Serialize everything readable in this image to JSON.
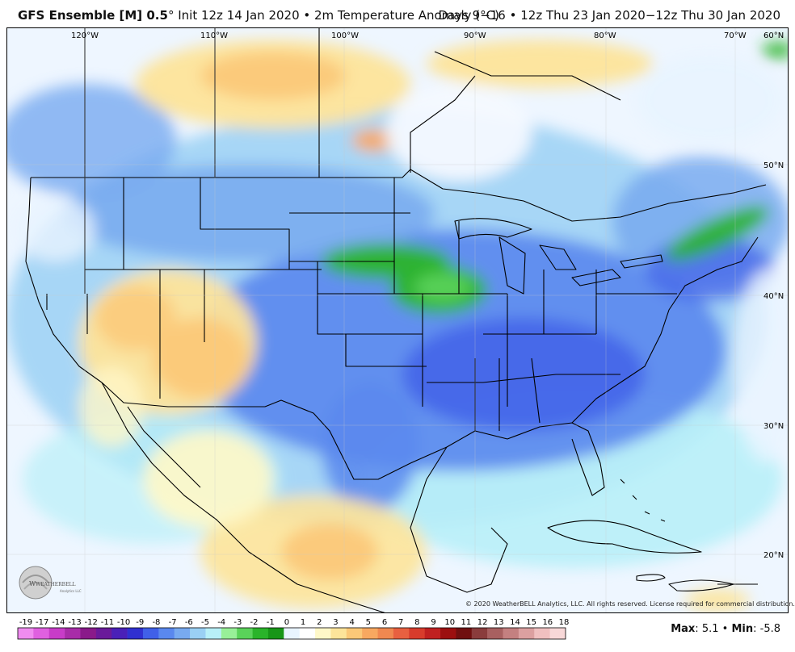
{
  "header": {
    "model": "GFS Ensemble [M] 0.5",
    "degree_mark": "°",
    "left_rest": " Init 12z 14 Jan 2020 • 2m Temperature Anomaly (°C)",
    "right": "Days 9−16 • 12z Thu 23 Jan 2020−12z Thu 30 Jan 2020"
  },
  "map": {
    "lon_labels": [
      "120°W",
      "110°W",
      "100°W",
      "90°W",
      "80°W",
      "70°W",
      "60°N"
    ],
    "lat_labels": [
      "50°N",
      "40°N",
      "30°N",
      "20°N"
    ],
    "copyright": "© 2020 WeatherBELL Analytics, LLC. All rights reserved. License required for commercial distribution.",
    "logo_text": "WEATHERBELL",
    "logo_sub": "Analytics LLC"
  },
  "legend": {
    "ticks": [
      "-19",
      "-17",
      "-14",
      "-13",
      "-12",
      "-11",
      "-10",
      "-9",
      "-8",
      "-7",
      "-6",
      "-5",
      "-4",
      "-3",
      "-2",
      "-1",
      "0",
      "1",
      "2",
      "3",
      "4",
      "5",
      "6",
      "7",
      "8",
      "9",
      "10",
      "11",
      "12",
      "13",
      "14",
      "15",
      "16",
      "18"
    ],
    "colors": [
      "#f08cf0",
      "#e060e0",
      "#c83cc8",
      "#a82ca8",
      "#8a1a8a",
      "#6a1a9a",
      "#4a20b8",
      "#3030d0",
      "#4060e8",
      "#5a88ee",
      "#78aaf0",
      "#9ad0f4",
      "#b8f0f8",
      "#98f098",
      "#5ad25a",
      "#2ab42a",
      "#189618",
      "#e8f4ff",
      "#ffffff",
      "#fff8c8",
      "#fde49a",
      "#fbc878",
      "#f8a860",
      "#f08850",
      "#e86040",
      "#d83c2c",
      "#c02020",
      "#9c1010",
      "#701010",
      "#8a3c3c",
      "#a86060",
      "#c48080",
      "#dca0a0",
      "#f0c0c0",
      "#f8d8d8"
    ]
  },
  "stats": {
    "max_label": "Max",
    "max_value": "5.1",
    "sep": "•",
    "min_label": "Min",
    "min_value": "-5.8"
  }
}
